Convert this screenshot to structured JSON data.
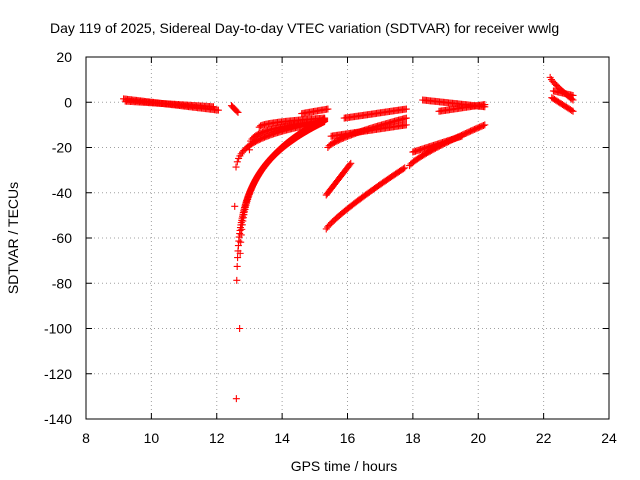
{
  "chart_data": {
    "type": "scatter",
    "title": "Day 119 of 2025, Sidereal Day-to-day VTEC variation (SDTVAR) for receiver wwlg",
    "xlabel": "GPS time / hours",
    "ylabel": "SDTVAR / TECUs",
    "xlim": [
      8,
      24
    ],
    "ylim": [
      -140,
      20
    ],
    "x_ticks": [
      8,
      10,
      12,
      14,
      16,
      18,
      20,
      22,
      24
    ],
    "y_ticks": [
      20,
      0,
      -20,
      -40,
      -60,
      -80,
      -100,
      -120,
      -140
    ],
    "grid": true,
    "marker": "+",
    "color": "#ff0000",
    "series": [
      {
        "name": "arc1",
        "x_start": 9.15,
        "x_end": 12.05,
        "y_start": 1.5,
        "y_end": -3.5,
        "curve": "linear"
      },
      {
        "name": "arc2",
        "x_start": 9.2,
        "x_end": 11.9,
        "y_start": 0.5,
        "y_end": -2.0,
        "curve": "linear"
      },
      {
        "name": "arc3",
        "x_start": 12.45,
        "x_end": 12.65,
        "y_start": -1.5,
        "y_end": -4.5,
        "curve": "linear"
      },
      {
        "name": "arc4",
        "x_start": 12.6,
        "x_end": 15.3,
        "y_start": -131,
        "y_end": -7.5,
        "curve": "pow",
        "k": 0.16
      },
      {
        "name": "arc5",
        "x_start": 12.7,
        "x_end": 15.3,
        "y_start": -100,
        "y_end": -8.5,
        "curve": "pow",
        "k": 0.2
      },
      {
        "name": "arc6",
        "x_start": 12.55,
        "x_end": 15.2,
        "y_start": -46,
        "y_end": -9,
        "curve": "pow",
        "k": 0.18
      },
      {
        "name": "arc7",
        "x_start": 13.0,
        "x_end": 15.3,
        "y_start": -21,
        "y_end": -8,
        "curve": "pow",
        "k": 0.3
      },
      {
        "name": "arc8",
        "x_start": 13.3,
        "x_end": 15.3,
        "y_start": -11,
        "y_end": -7,
        "curve": "pow",
        "k": 0.5
      },
      {
        "name": "arc9",
        "x_start": 14.6,
        "x_end": 15.4,
        "y_start": -5,
        "y_end": -3,
        "curve": "linear"
      },
      {
        "name": "arc10",
        "x_start": 15.35,
        "x_end": 16.1,
        "y_start": -41,
        "y_end": -27,
        "curve": "linear"
      },
      {
        "name": "arc11",
        "x_start": 15.35,
        "x_end": 17.75,
        "y_start": -56,
        "y_end": -29,
        "curve": "pow",
        "k": 0.85
      },
      {
        "name": "arc12",
        "x_start": 15.4,
        "x_end": 17.8,
        "y_start": -20,
        "y_end": -7,
        "curve": "pow",
        "k": 0.7
      },
      {
        "name": "arc13",
        "x_start": 15.5,
        "x_end": 17.8,
        "y_start": -15,
        "y_end": -10,
        "curve": "linear"
      },
      {
        "name": "arc14",
        "x_start": 15.9,
        "x_end": 17.8,
        "y_start": -7,
        "y_end": -3,
        "curve": "linear"
      },
      {
        "name": "arc15",
        "x_start": 17.9,
        "x_end": 20.2,
        "y_start": -28,
        "y_end": -10,
        "curve": "pow",
        "k": 0.8
      },
      {
        "name": "arc16",
        "x_start": 18.0,
        "x_end": 19.5,
        "y_start": -22,
        "y_end": -15,
        "curve": "linear"
      },
      {
        "name": "arc17",
        "x_start": 18.3,
        "x_end": 20.2,
        "y_start": 1,
        "y_end": -2,
        "curve": "linear"
      },
      {
        "name": "arc18",
        "x_start": 18.8,
        "x_end": 20.2,
        "y_start": -4,
        "y_end": -1,
        "curve": "linear"
      },
      {
        "name": "arc19",
        "x_start": 22.2,
        "x_end": 22.9,
        "y_start": 11,
        "y_end": 1,
        "curve": "pow",
        "k": 0.8
      },
      {
        "name": "arc20",
        "x_start": 22.25,
        "x_end": 22.9,
        "y_start": 2,
        "y_end": -4,
        "curve": "linear"
      },
      {
        "name": "arc21",
        "x_start": 22.3,
        "x_end": 22.9,
        "y_start": 5,
        "y_end": 3,
        "curve": "linear"
      }
    ]
  }
}
